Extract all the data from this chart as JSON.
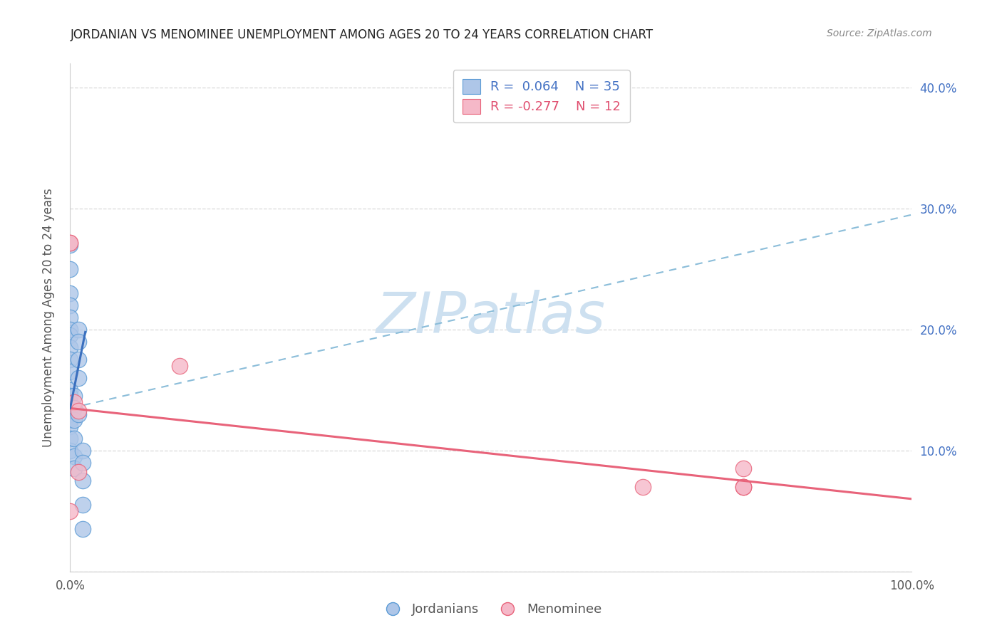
{
  "title": "JORDANIAN VS MENOMINEE UNEMPLOYMENT AMONG AGES 20 TO 24 YEARS CORRELATION CHART",
  "source": "Source: ZipAtlas.com",
  "ylabel": "Unemployment Among Ages 20 to 24 years",
  "xlim": [
    0.0,
    1.0
  ],
  "ylim": [
    0.0,
    0.42
  ],
  "xticks": [
    0.0,
    0.1,
    0.2,
    0.3,
    0.4,
    0.5,
    0.6,
    0.7,
    0.8,
    0.9,
    1.0
  ],
  "xticklabels": [
    "0.0%",
    "",
    "",
    "",
    "",
    "",
    "",
    "",
    "",
    "",
    "100.0%"
  ],
  "yticks": [
    0.0,
    0.1,
    0.2,
    0.3,
    0.4
  ],
  "yticklabels": [
    "",
    "10.0%",
    "20.0%",
    "30.0%",
    "40.0%"
  ],
  "background_color": "#ffffff",
  "grid_color": "#d8d8d8",
  "jordanian_color": "#aec6e8",
  "menominee_color": "#f5b8c8",
  "jordanian_edge_color": "#5b9bd5",
  "menominee_edge_color": "#e8637a",
  "jordanian_line_color": "#3a6fbe",
  "menominee_line_color": "#e8637a",
  "dashed_line_color": "#8bbdd9",
  "legend_line1": "R =  0.064    N = 35",
  "legend_line2": "R = -0.277    N = 12",
  "legend_color1": "#4472c4",
  "legend_color2": "#e05070",
  "watermark_color": "#cde0f0",
  "jordanian_x": [
    0.0,
    0.0,
    0.0,
    0.0,
    0.0,
    0.0,
    0.0,
    0.0,
    0.0,
    0.0,
    0.0,
    0.0,
    0.0,
    0.0,
    0.0,
    0.0,
    0.0,
    0.0,
    0.0,
    0.005,
    0.005,
    0.005,
    0.005,
    0.005,
    0.005,
    0.01,
    0.01,
    0.01,
    0.01,
    0.01,
    0.015,
    0.015,
    0.015,
    0.015,
    0.015
  ],
  "jordanian_y": [
    0.27,
    0.25,
    0.23,
    0.22,
    0.21,
    0.2,
    0.195,
    0.185,
    0.175,
    0.165,
    0.15,
    0.145,
    0.14,
    0.135,
    0.13,
    0.125,
    0.12,
    0.11,
    0.1,
    0.145,
    0.135,
    0.125,
    0.11,
    0.095,
    0.085,
    0.2,
    0.19,
    0.175,
    0.16,
    0.13,
    0.1,
    0.09,
    0.075,
    0.055,
    0.035
  ],
  "menominee_x": [
    0.0,
    0.0,
    0.0,
    0.005,
    0.01,
    0.01,
    0.13,
    0.68,
    0.8,
    0.8,
    0.8,
    0.8
  ],
  "menominee_y": [
    0.272,
    0.272,
    0.05,
    0.14,
    0.133,
    0.082,
    0.17,
    0.07,
    0.085,
    0.07,
    0.07,
    0.07
  ],
  "blue_line_x": [
    0.0,
    0.016
  ],
  "blue_line_y_start": 0.135,
  "blue_line_slope": 3.5,
  "dashed_line_y_at_0": 0.135,
  "dashed_line_y_at_1": 0.295,
  "pink_line_y_at_0": 0.135,
  "pink_line_y_at_1": 0.06
}
